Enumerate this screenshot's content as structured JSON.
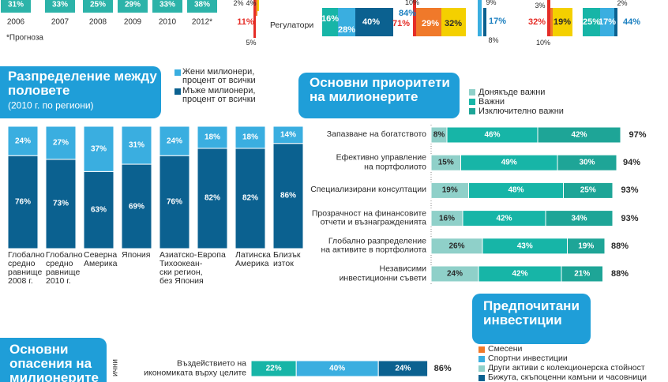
{
  "chart_data": [
    {
      "type": "bar",
      "categories": [
        "2006",
        "2007",
        "2008",
        "2009",
        "2010",
        "2012*"
      ],
      "values": [
        31,
        33,
        25,
        29,
        33,
        38
      ],
      "value_labels": [
        "31%",
        "33%",
        "25%",
        "29%",
        "33%",
        "38%"
      ],
      "color": "#2cb3a9",
      "note": "*Прогноза"
    },
    {
      "type": "stacked_bar",
      "title": "Разпределение между\nполовете",
      "subtitle": "(2010 г. по региони)",
      "categories": [
        "Глобално\nсредно\nравнище\n2008 г.",
        "Глобално\nсредно\nравнище\n2010 г.",
        "Северна\nАмерика",
        "Япония",
        "Азиатско-\nТихоокеан-\nски регион,\nбез Япония",
        "Европа",
        "Латинска\nАмерика",
        "Близък\nизток"
      ],
      "series": [
        {
          "name": "Жени милионери,\nпроцент от всички",
          "color": "#3aaee0",
          "values": [
            24,
            27,
            37,
            31,
            24,
            18,
            18,
            14
          ],
          "value_labels": [
            "24%",
            "27%",
            "37%",
            "31%",
            "24%",
            "18%",
            "18%",
            "14%"
          ]
        },
        {
          "name": "Мъже милионери,\nпроцент от всички",
          "color": "#0b6190",
          "values": [
            76,
            73,
            63,
            69,
            76,
            82,
            82,
            86
          ],
          "value_labels": [
            "76%",
            "73%",
            "63%",
            "69%",
            "76%",
            "82%",
            "82%",
            "86%"
          ]
        }
      ],
      "ylim": [
        0,
        100
      ]
    },
    {
      "type": "stacked_barh",
      "title": "Основни приоритети\nна милионерите",
      "categories": [
        "Запазване на богатството",
        "Ефективно управление\nна портфолиото",
        "Специализирани консултации",
        "Прозрачност на финансовите\nотчети и възнагражденията",
        "Глобално разпределение\nна активите в портфолиота",
        "Независими\nинвестиционни съвети"
      ],
      "series": [
        {
          "name": "Донякъде важни",
          "color": "#8fd0c9",
          "values": [
            8,
            15,
            19,
            16,
            26,
            24
          ],
          "value_labels": [
            "8%",
            "15%",
            "19%",
            "16%",
            "26%",
            "24%"
          ]
        },
        {
          "name": "Важни",
          "color": "#17b5a7",
          "values": [
            46,
            49,
            48,
            42,
            43,
            42
          ],
          "value_labels": [
            "46%",
            "49%",
            "48%",
            "42%",
            "43%",
            "42%"
          ]
        },
        {
          "name": "Изключително важни",
          "color": "#1ea597",
          "values": [
            42,
            30,
            25,
            34,
            19,
            21
          ],
          "value_labels": [
            "42%",
            "30%",
            "25%",
            "34%",
            "19%",
            "21%"
          ]
        }
      ],
      "totals": [
        97,
        94,
        93,
        93,
        88,
        88
      ],
      "total_labels": [
        "97%",
        "94%",
        "93%",
        "93%",
        "88%",
        "88%"
      ],
      "xlim": [
        0,
        100
      ]
    },
    {
      "type": "stacked_barh",
      "title": "Основни\nопасения на\nмилионерите",
      "categories": [
        "Въздействието на\nикономиката върху целите"
      ],
      "series": [
        {
          "color": "#17b5a7",
          "values": [
            22
          ],
          "value_labels": [
            "22%"
          ]
        },
        {
          "color": "#3aaee0",
          "values": [
            40
          ],
          "value_labels": [
            "40%"
          ]
        },
        {
          "color": "#0b6190",
          "values": [
            24
          ],
          "value_labels": [
            "24%"
          ]
        }
      ],
      "totals": [
        86
      ],
      "total_labels": [
        "86%"
      ],
      "xlim": [
        0,
        100
      ]
    }
  ],
  "top_strip": {
    "row_label": "Регулатори",
    "labels": [
      "2%",
      "4%",
      "11%",
      "5%",
      "16%",
      "28%",
      "40%",
      "84%",
      "10%",
      "71%",
      "29%",
      "32%",
      "9%",
      "17%",
      "8%",
      "3%",
      "32%",
      "19%",
      "10%",
      "2%",
      "25%",
      "17%",
      "44%"
    ]
  },
  "investments": {
    "title": "Предпочитани\nинвестиции",
    "legend": [
      {
        "label": "Смесени",
        "color": "#f0792a"
      },
      {
        "label": "Спортни инвестиции",
        "color": "#3aaee0"
      },
      {
        "label": "Други активи с колекционерска стойност",
        "color": "#8fd0c9"
      },
      {
        "label": "Бижута, скъпоценни камъни и часовници",
        "color": "#0b6190"
      }
    ]
  },
  "side_text": "ични"
}
